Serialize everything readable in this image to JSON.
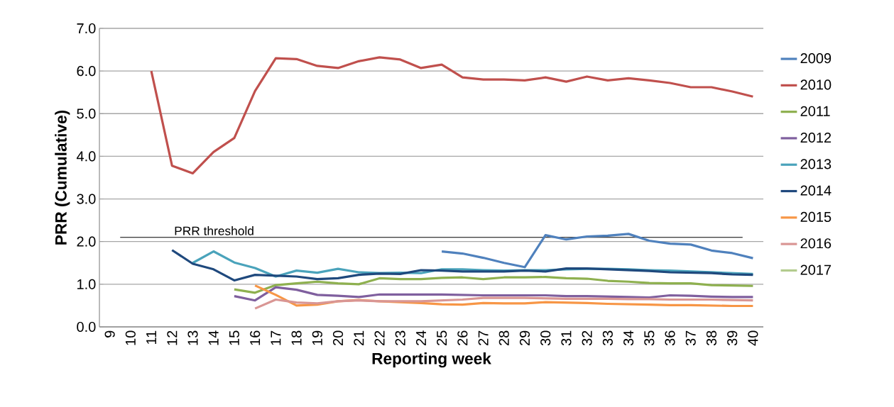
{
  "chart_data": {
    "type": "line",
    "xlabel": "Reporting week",
    "ylabel": "PRR (Cumulative)",
    "categories": [
      "9",
      "10",
      "11",
      "12",
      "13",
      "14",
      "15",
      "16",
      "17",
      "18",
      "19",
      "20",
      "21",
      "22",
      "23",
      "24",
      "25",
      "26",
      "27",
      "28",
      "29",
      "30",
      "31",
      "32",
      "33",
      "34",
      "35",
      "36",
      "37",
      "38",
      "39",
      "40"
    ],
    "ylim": [
      0,
      7
    ],
    "yticks": [
      {
        "value": 0,
        "label": "0.0"
      },
      {
        "value": 1,
        "label": "1.0"
      },
      {
        "value": 2,
        "label": "2.0"
      },
      {
        "value": 3,
        "label": "3.0"
      },
      {
        "value": 4,
        "label": "4.0"
      },
      {
        "value": 5,
        "label": "5.0"
      },
      {
        "value": 6,
        "label": "6.0"
      },
      {
        "value": 7,
        "label": "7.0"
      }
    ],
    "grid": "y",
    "legend": "right",
    "marker": "none",
    "line_style": "solid",
    "ref_lines": [
      {
        "axis": "y",
        "value": 2.1,
        "label": "PRR threshold",
        "color": "#000000"
      }
    ],
    "series": [
      {
        "name": "2009",
        "color": "#4f81bd",
        "values": [
          null,
          null,
          null,
          null,
          null,
          null,
          null,
          null,
          null,
          null,
          null,
          null,
          null,
          null,
          null,
          null,
          1.77,
          1.72,
          1.62,
          1.5,
          1.4,
          2.15,
          2.05,
          2.12,
          2.14,
          2.18,
          2.02,
          1.95,
          1.93,
          1.79,
          1.73,
          1.61
        ]
      },
      {
        "name": "2010",
        "color": "#c0504d",
        "values": [
          null,
          null,
          6.0,
          3.78,
          3.6,
          4.1,
          4.43,
          5.53,
          6.3,
          6.28,
          6.12,
          6.07,
          6.23,
          6.32,
          6.27,
          6.07,
          6.15,
          5.85,
          5.8,
          5.8,
          5.78,
          5.85,
          5.75,
          5.87,
          5.78,
          5.83,
          5.78,
          5.72,
          5.62,
          5.62,
          5.52,
          5.4
        ]
      },
      {
        "name": "2011",
        "color": "#8eb04f",
        "values": [
          null,
          null,
          null,
          null,
          null,
          null,
          0.88,
          0.8,
          0.98,
          1.02,
          1.06,
          1.02,
          1.0,
          1.14,
          1.12,
          1.12,
          1.15,
          1.16,
          1.12,
          1.16,
          1.16,
          1.17,
          1.14,
          1.13,
          1.08,
          1.06,
          1.03,
          1.02,
          1.02,
          0.98,
          0.97,
          0.96
        ]
      },
      {
        "name": "2012",
        "color": "#7f5f9e",
        "values": [
          null,
          null,
          null,
          null,
          null,
          null,
          0.72,
          0.62,
          0.93,
          0.87,
          0.75,
          0.73,
          0.7,
          0.76,
          0.76,
          0.76,
          0.76,
          0.75,
          0.74,
          0.74,
          0.74,
          0.74,
          0.72,
          0.72,
          0.71,
          0.7,
          0.69,
          0.74,
          0.73,
          0.71,
          0.7,
          0.7
        ]
      },
      {
        "name": "2013",
        "color": "#4aa3bb",
        "values": [
          null,
          null,
          null,
          null,
          1.5,
          1.77,
          1.51,
          1.38,
          1.18,
          1.32,
          1.27,
          1.36,
          1.28,
          1.26,
          1.27,
          1.26,
          1.35,
          1.35,
          1.33,
          1.32,
          1.33,
          1.33,
          1.35,
          1.36,
          1.36,
          1.35,
          1.33,
          1.32,
          1.3,
          1.28,
          1.26,
          1.24
        ]
      },
      {
        "name": "2014",
        "color": "#1f497d",
        "values": [
          null,
          null,
          null,
          1.8,
          1.48,
          1.35,
          1.09,
          1.22,
          1.2,
          1.18,
          1.12,
          1.14,
          1.22,
          1.25,
          1.24,
          1.33,
          1.32,
          1.3,
          1.3,
          1.3,
          1.32,
          1.3,
          1.37,
          1.37,
          1.35,
          1.33,
          1.31,
          1.28,
          1.27,
          1.26,
          1.23,
          1.22
        ]
      },
      {
        "name": "2015",
        "color": "#f79646",
        "values": [
          null,
          null,
          null,
          null,
          null,
          null,
          null,
          0.97,
          0.75,
          0.5,
          0.52,
          0.6,
          0.63,
          0.6,
          0.58,
          0.56,
          0.53,
          0.52,
          0.56,
          0.55,
          0.55,
          0.58,
          0.57,
          0.56,
          0.54,
          0.53,
          0.52,
          0.51,
          0.51,
          0.5,
          0.49,
          0.49
        ]
      },
      {
        "name": "2016",
        "color": "#d99694",
        "values": [
          null,
          null,
          null,
          null,
          null,
          null,
          null,
          0.43,
          0.64,
          0.57,
          0.55,
          0.6,
          0.62,
          0.6,
          0.6,
          0.6,
          0.62,
          0.64,
          0.68,
          0.68,
          0.68,
          0.67,
          0.66,
          0.66,
          0.66,
          0.65,
          0.65,
          0.64,
          0.64,
          0.64,
          0.63,
          0.62
        ]
      },
      {
        "name": "2017",
        "color": "#b3cc8e",
        "values": [
          null,
          null,
          null,
          null,
          null,
          null,
          null,
          null,
          null,
          null,
          null,
          null,
          null,
          null,
          null,
          null,
          null,
          null,
          null,
          null,
          null,
          null,
          null,
          null,
          null,
          null,
          null,
          null,
          null,
          null,
          null,
          null
        ]
      }
    ]
  }
}
